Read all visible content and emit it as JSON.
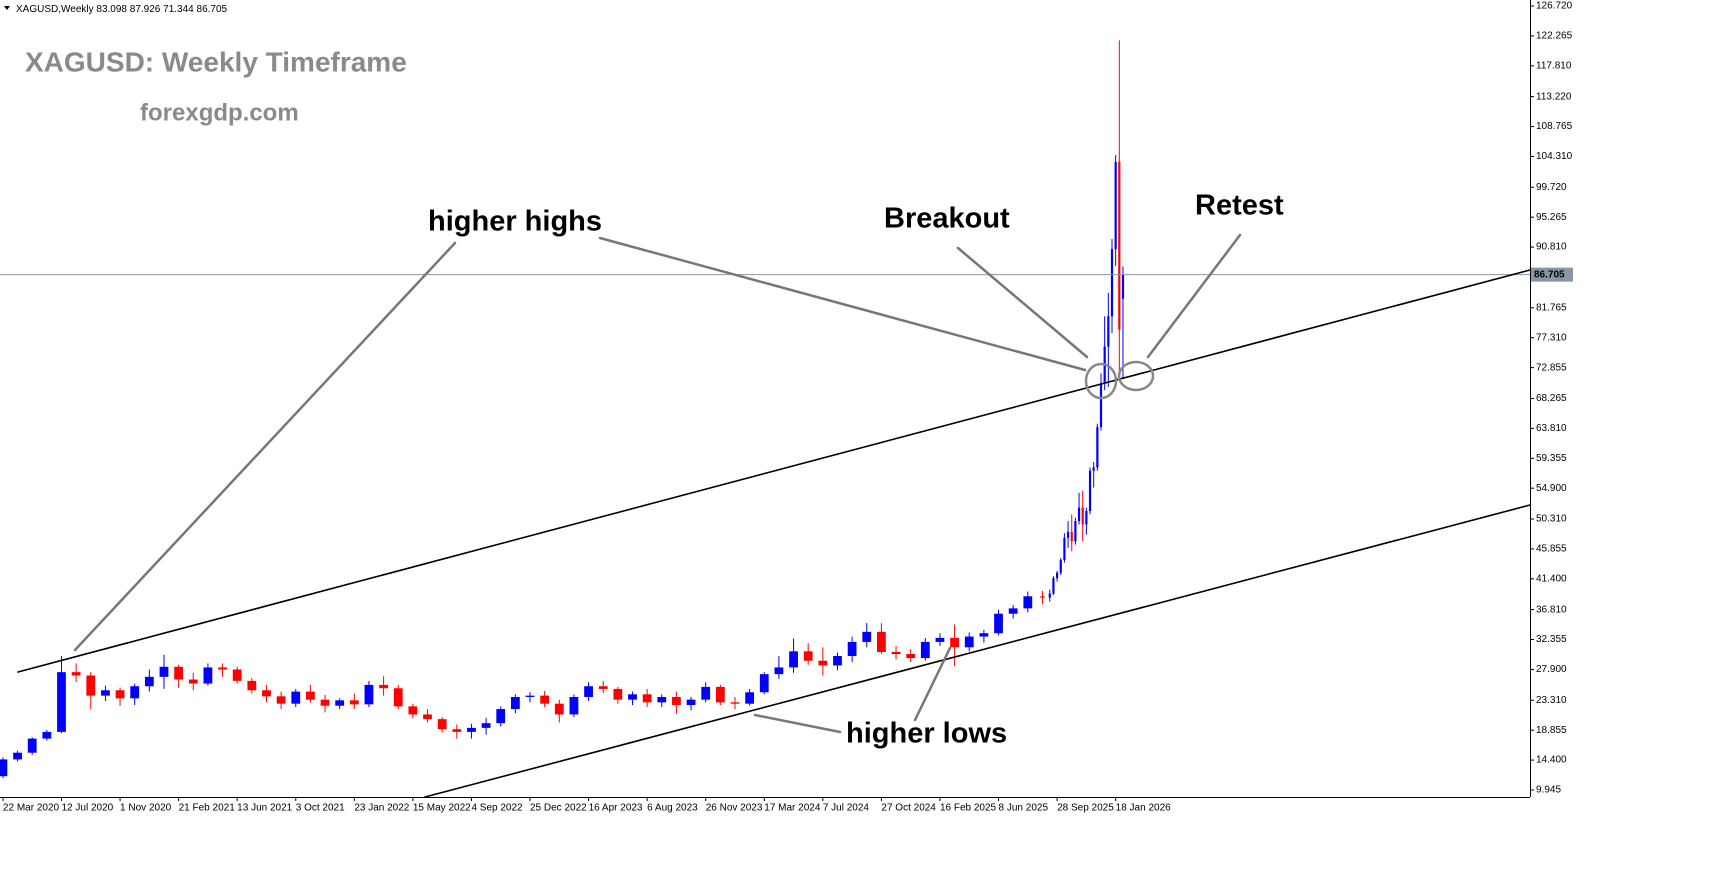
{
  "chart_data": {
    "type": "candlestick",
    "symbol": "XAGUSD,Weekly",
    "title": "XAGUSD: Weekly Timeframe",
    "subtitle": "forexgdp.com",
    "annotations": [
      "higher highs",
      "Breakout",
      "Retest",
      "higher lows"
    ],
    "up_color": "#0000ff",
    "down_color": "#ff0000",
    "x": [
      0,
      4,
      8,
      12,
      16,
      20,
      24,
      28,
      32,
      36,
      40,
      44,
      48,
      52,
      56,
      60,
      64,
      68,
      72,
      76,
      80,
      84,
      88,
      92,
      96,
      100,
      104,
      108,
      112,
      116,
      120,
      124,
      128,
      132,
      136,
      140,
      144,
      148,
      152,
      156,
      160,
      164,
      168,
      172,
      176,
      180,
      184,
      188,
      192,
      196,
      200,
      204,
      208,
      212,
      216,
      220,
      224,
      228,
      232,
      236,
      240,
      244,
      248,
      252,
      256,
      260,
      264,
      268,
      272,
      276,
      280,
      284,
      286,
      287,
      288,
      289,
      290,
      291,
      292,
      293,
      294,
      295,
      296,
      297,
      298,
      299,
      300,
      301,
      302,
      303,
      304,
      305,
      306
    ],
    "open": [
      12.0,
      14.5,
      15.5,
      17.6,
      18.6,
      27.5,
      27.0,
      24.0,
      24.8,
      23.6,
      25.4,
      26.8,
      28.3,
      26.4,
      25.8,
      28.2,
      27.9,
      26.2,
      24.8,
      23.9,
      22.8,
      24.6,
      23.4,
      22.5,
      23.3,
      22.7,
      25.6,
      25.1,
      22.4,
      21.2,
      20.5,
      19.0,
      18.6,
      19.2,
      19.9,
      22.0,
      23.8,
      24.0,
      22.8,
      21.2,
      23.8,
      25.4,
      25.0,
      23.4,
      24.2,
      23.0,
      23.8,
      22.6,
      23.4,
      25.3,
      23.0,
      22.8,
      24.5,
      27.2,
      28.2,
      30.6,
      29.2,
      28.5,
      29.9,
      32.0,
      33.5,
      30.5,
      30.2,
      29.6,
      32.0,
      32.6,
      31.2,
      32.8,
      33.3,
      36.2,
      37.0,
      38.8,
      38.6,
      39.2,
      41.5,
      42.3,
      44.2,
      47.5,
      48.4,
      47.0,
      50.0,
      52.0,
      49.5,
      51.5,
      57.5,
      58.0,
      64.0,
      70.5,
      76.0,
      80.5,
      90.5,
      103.5,
      83.098
    ],
    "high": [
      14.8,
      15.8,
      17.8,
      18.9,
      29.9,
      28.8,
      27.5,
      25.5,
      25.2,
      25.8,
      27.9,
      30.1,
      28.6,
      27.4,
      28.8,
      28.8,
      28.3,
      26.6,
      25.6,
      24.6,
      25.0,
      25.6,
      24.1,
      23.6,
      24.3,
      26.2,
      26.9,
      25.6,
      22.8,
      22.0,
      20.8,
      19.7,
      19.8,
      20.7,
      22.4,
      24.2,
      24.5,
      24.7,
      23.4,
      24.2,
      26.0,
      26.2,
      25.3,
      24.6,
      25.0,
      24.2,
      24.6,
      23.8,
      26.0,
      25.6,
      23.8,
      25.0,
      27.5,
      29.9,
      32.5,
      31.8,
      31.2,
      30.4,
      32.8,
      34.8,
      34.8,
      31.4,
      30.9,
      32.6,
      33.3,
      34.6,
      33.4,
      33.8,
      36.8,
      37.5,
      39.5,
      39.6,
      39.8,
      41.8,
      42.6,
      44.5,
      48.2,
      50.0,
      51.0,
      50.5,
      54.2,
      54.5,
      52.0,
      58.0,
      58.8,
      64.5,
      72.0,
      80.5,
      84.0,
      92.0,
      104.5,
      121.6,
      87.926
    ],
    "low": [
      11.7,
      14.2,
      15.2,
      17.3,
      18.4,
      26.0,
      22.0,
      23.2,
      22.5,
      22.6,
      24.6,
      25.0,
      25.2,
      24.8,
      25.5,
      26.8,
      25.8,
      24.3,
      23.0,
      22.0,
      22.3,
      23.0,
      21.5,
      22.0,
      22.0,
      22.3,
      24.0,
      22.0,
      20.6,
      20.0,
      18.5,
      17.6,
      17.6,
      18.2,
      19.4,
      21.4,
      23.0,
      22.3,
      20.0,
      20.8,
      23.2,
      24.4,
      22.8,
      22.6,
      22.3,
      22.3,
      21.3,
      21.8,
      23.0,
      22.6,
      22.0,
      22.5,
      24.2,
      26.5,
      27.4,
      28.6,
      27.0,
      27.8,
      29.0,
      31.2,
      30.2,
      29.4,
      29.0,
      29.2,
      31.4,
      28.4,
      30.6,
      31.9,
      33.0,
      35.5,
      36.4,
      37.6,
      38.0,
      39.0,
      41.0,
      42.0,
      43.8,
      46.0,
      45.5,
      46.5,
      49.5,
      47.0,
      48.0,
      51.0,
      55.0,
      57.5,
      63.5,
      69.5,
      70.0,
      78.0,
      88.0,
      72.0,
      71.344
    ],
    "close": [
      14.5,
      15.5,
      17.6,
      18.6,
      27.5,
      27.0,
      24.0,
      24.8,
      23.6,
      25.4,
      26.8,
      28.3,
      26.4,
      25.8,
      28.2,
      27.9,
      26.2,
      24.8,
      23.9,
      22.8,
      24.6,
      23.4,
      22.5,
      23.3,
      22.7,
      25.6,
      25.1,
      22.4,
      21.2,
      20.5,
      19.0,
      18.6,
      19.2,
      19.9,
      22.0,
      23.8,
      24.0,
      22.8,
      21.2,
      23.8,
      25.4,
      25.0,
      23.4,
      24.2,
      23.0,
      23.8,
      22.6,
      23.4,
      25.3,
      23.0,
      22.8,
      24.5,
      27.2,
      28.2,
      30.6,
      29.2,
      28.5,
      29.9,
      32.0,
      33.5,
      30.5,
      30.2,
      29.6,
      32.0,
      32.6,
      31.2,
      32.8,
      33.3,
      36.2,
      37.0,
      38.8,
      38.6,
      39.2,
      41.5,
      42.3,
      44.2,
      47.5,
      48.4,
      47.0,
      50.0,
      52.0,
      49.5,
      51.5,
      57.5,
      58.0,
      64.0,
      70.5,
      76.0,
      80.5,
      90.5,
      103.5,
      78.5,
      86.705
    ],
    "xlim": [
      -0.8,
      417.2
    ],
    "xticks": [
      {
        "value": 0,
        "label": "22 Mar 2020"
      },
      {
        "value": 16,
        "label": "12 Jul 2020"
      },
      {
        "value": 32,
        "label": "1 Nov 2020"
      },
      {
        "value": 48,
        "label": "21 Feb 2021"
      },
      {
        "value": 64,
        "label": "13 Jun 2021"
      },
      {
        "value": 80,
        "label": "3 Oct 2021"
      },
      {
        "value": 96,
        "label": "23 Jan 2022"
      },
      {
        "value": 112,
        "label": "15 May 2022"
      },
      {
        "value": 128,
        "label": "4 Sep 2022"
      },
      {
        "value": 144,
        "label": "25 Dec 2022"
      },
      {
        "value": 160,
        "label": "16 Apr 2023"
      },
      {
        "value": 176,
        "label": "6 Aug 2023"
      },
      {
        "value": 192,
        "label": "26 Nov 2023"
      },
      {
        "value": 208,
        "label": "17 Mar 2024"
      },
      {
        "value": 224,
        "label": "7 Jul 2024"
      },
      {
        "value": 240,
        "label": "27 Oct 2024"
      },
      {
        "value": 256,
        "label": "16 Feb 2025"
      },
      {
        "value": 272,
        "label": "8 Jun 2025"
      },
      {
        "value": 288,
        "label": "28 Sep 2025"
      },
      {
        "value": 304,
        "label": "18 Jan 2026"
      }
    ],
    "ylim": [
      9.945,
      126.72
    ],
    "yticks": [
      9.945,
      {
        "value": 14.4,
        "label": "14.400"
      },
      18.855,
      {
        "value": 23.31,
        "label": "23.310"
      },
      {
        "value": 27.9,
        "label": "27.900"
      },
      32.355,
      {
        "value": 36.81,
        "label": "36.810"
      },
      {
        "value": 41.4,
        "label": "41.400"
      },
      45.855,
      {
        "value": 50.31,
        "label": "50.310"
      },
      {
        "value": 54.9,
        "label": "54.900"
      },
      59.355,
      {
        "value": 63.81,
        "label": "63.810"
      },
      68.265,
      72.855,
      {
        "value": 77.31,
        "label": "77.310"
      },
      81.765,
      {
        "value": 90.81,
        "label": "90.810"
      },
      95.265,
      {
        "value": 99.72,
        "label": "99.720"
      },
      {
        "value": 104.31,
        "label": "104.310"
      },
      108.765,
      {
        "value": 113.22,
        "label": "113.220"
      },
      {
        "value": 117.81,
        "label": "117.810"
      },
      122.265,
      {
        "value": 126.72,
        "label": "126.720"
      }
    ]
  }
}
